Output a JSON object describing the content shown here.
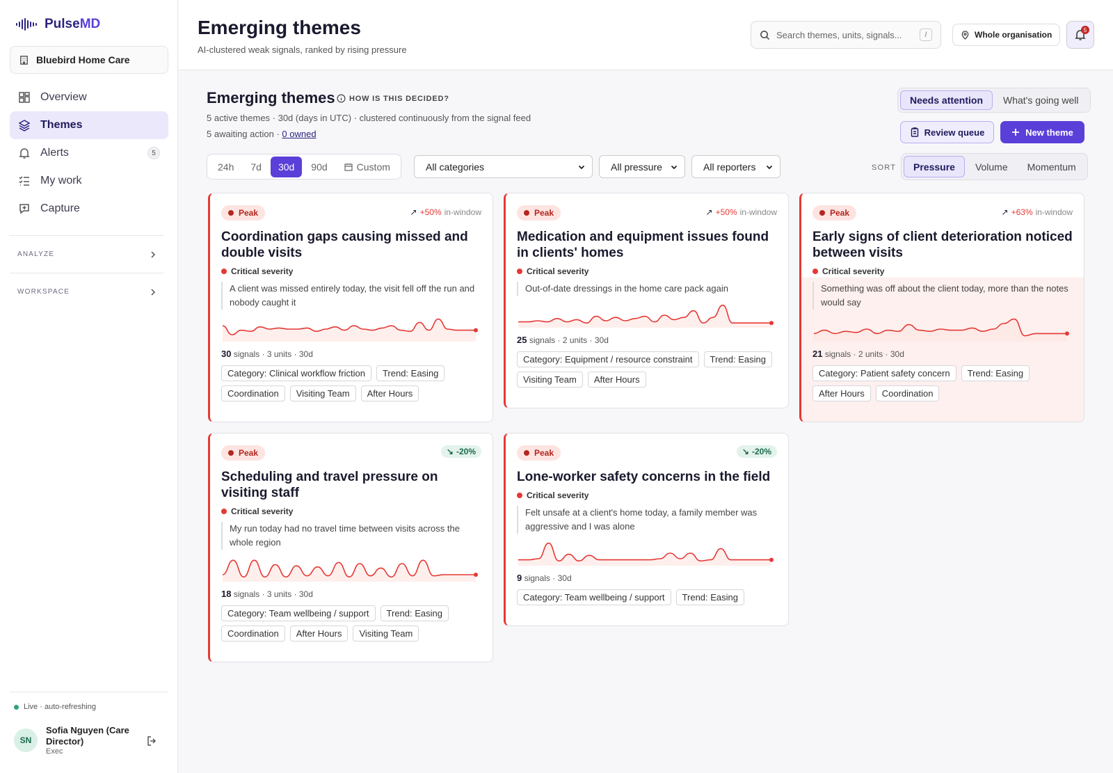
{
  "app": {
    "logo_text": "Pulse",
    "logo_accent": "MD",
    "org_name": "Bluebird Home Care",
    "accent_color": "#5b3fd9"
  },
  "sidebar": {
    "items": [
      {
        "label": "Overview",
        "icon": "grid-icon"
      },
      {
        "label": "Themes",
        "icon": "layers-icon",
        "active": true
      },
      {
        "label": "Alerts",
        "icon": "bell-icon",
        "badge": "5"
      },
      {
        "label": "My work",
        "icon": "checklist-icon"
      },
      {
        "label": "Capture",
        "icon": "capture-plus-icon"
      }
    ],
    "sections": [
      "ANALYZE",
      "WORKSPACE"
    ],
    "live_text": "Live · auto-refreshing",
    "user": {
      "initials": "SN",
      "name": "Sofia Nguyen (Care Director)",
      "role": "Exec"
    }
  },
  "header": {
    "title": "Emerging themes",
    "subtitle": "AI-clustered weak signals, ranked by rising pressure",
    "search_placeholder": "Search themes, units, signals...",
    "search_kbd": "/",
    "scope": "Whole organisation",
    "notif_count": "5"
  },
  "main": {
    "title": "Emerging themes",
    "how_link": "HOW IS THIS DECIDED?",
    "meta1": "5 active themes · 30d (days in UTC) · clustered continuously from the signal feed",
    "meta2_prefix": "5 awaiting action · ",
    "meta2_link": "0 owned",
    "view_toggle": [
      "Needs attention",
      "What's going well"
    ],
    "review_label": "Review queue",
    "new_label": "New theme",
    "ranges": [
      "24h",
      "7d",
      "30d",
      "90d",
      "Custom"
    ],
    "filters": [
      "All categories",
      "All pressure",
      "All reporters"
    ],
    "sort_label": "SORT",
    "sort_options": [
      "Pressure",
      "Volume",
      "Momentum"
    ]
  },
  "cards": [
    {
      "pill": "Peak",
      "trend_value": "+50%",
      "trend_word": "in-window",
      "trend_dir": "up",
      "title": "Coordination gaps causing missed and double visits",
      "severity": "Critical severity",
      "quote": "A client was missed entirely today, the visit fell off the run and nobody caught it",
      "signals": "30",
      "stats_rest": "signals · 3 units · 30d",
      "spark": [
        0.35,
        0.75,
        0.55,
        0.6,
        0.4,
        0.5,
        0.45,
        0.5,
        0.5,
        0.45,
        0.6,
        0.5,
        0.4,
        0.55,
        0.35,
        0.5,
        0.55,
        0.45,
        0.35,
        0.55,
        0.6,
        0.2,
        0.55,
        0.05,
        0.5,
        0.55,
        0.55,
        0.55
      ],
      "tags": [
        "Category: Clinical workflow friction",
        "Trend: Easing",
        "Coordination",
        "Visiting Team",
        "After Hours"
      ]
    },
    {
      "pill": "Peak",
      "trend_value": "+50%",
      "trend_word": "in-window",
      "trend_dir": "up",
      "title": "Medication and equipment issues found in clients' homes",
      "severity": "Critical severity",
      "quote": "Out-of-date dressings in the home care pack again",
      "signals": "25",
      "stats_rest": "signals · 2 units · 30d",
      "spark": [
        0.8,
        0.8,
        0.75,
        0.8,
        0.65,
        0.8,
        0.7,
        0.85,
        0.55,
        0.75,
        0.6,
        0.75,
        0.65,
        0.55,
        0.8,
        0.5,
        0.7,
        0.6,
        0.3,
        0.85,
        0.6,
        0.05,
        0.85,
        0.85,
        0.85,
        0.85,
        0.85
      ],
      "tags": [
        "Category: Equipment / resource constraint",
        "Trend: Easing",
        "Visiting Team",
        "After Hours"
      ]
    },
    {
      "pill": "Peak",
      "trend_value": "+63%",
      "trend_word": "in-window",
      "trend_dir": "up",
      "title": "Early signs of client deterioration noticed between visits",
      "severity": "Critical severity",
      "quote": "Something was off about the client today, more than the notes would say",
      "signals": "21",
      "stats_rest": "signals · 2 units · 30d",
      "spark": [
        0.7,
        0.55,
        0.7,
        0.6,
        0.65,
        0.5,
        0.7,
        0.55,
        0.6,
        0.3,
        0.55,
        0.6,
        0.5,
        0.55,
        0.55,
        0.45,
        0.6,
        0.5,
        0.25,
        0.05,
        0.8,
        0.7,
        0.7,
        0.7,
        0.7
      ],
      "tags": [
        "Category: Patient safety concern",
        "Trend: Easing",
        "After Hours",
        "Coordination"
      ]
    },
    {
      "pill": "Peak",
      "trend_value": "-20%",
      "trend_word": "",
      "trend_dir": "down",
      "title": "Scheduling and travel pressure on visiting staff",
      "severity": "Critical severity",
      "quote": "My run today had no travel time between visits across the whole region",
      "signals": "18",
      "stats_rest": "signals · 3 units · 30d",
      "spark": [
        0.75,
        0.1,
        0.85,
        0.1,
        0.85,
        0.3,
        0.85,
        0.35,
        0.8,
        0.4,
        0.8,
        0.2,
        0.85,
        0.25,
        0.8,
        0.45,
        0.85,
        0.25,
        0.8,
        0.1,
        0.8,
        0.75,
        0.75,
        0.75,
        0.75
      ],
      "tags": [
        "Category: Team wellbeing / support",
        "Trend: Easing",
        "Coordination",
        "After Hours",
        "Visiting Team"
      ]
    },
    {
      "pill": "Peak",
      "trend_value": "-20%",
      "trend_word": "",
      "trend_dir": "down",
      "title": "Lone-worker safety concerns in the field",
      "severity": "Critical severity",
      "quote": "Felt unsafe at a client's home today, a family member was aggressive and I was alone",
      "signals": "9",
      "stats_rest": "signals · 30d",
      "spark": [
        0.8,
        0.8,
        0.75,
        0.05,
        0.85,
        0.55,
        0.85,
        0.6,
        0.8,
        0.8,
        0.8,
        0.8,
        0.8,
        0.8,
        0.75,
        0.5,
        0.75,
        0.5,
        0.85,
        0.8,
        0.3,
        0.8,
        0.8,
        0.8,
        0.8,
        0.8
      ],
      "tags": [
        "Category: Team wellbeing / support",
        "Trend: Easing"
      ]
    }
  ]
}
